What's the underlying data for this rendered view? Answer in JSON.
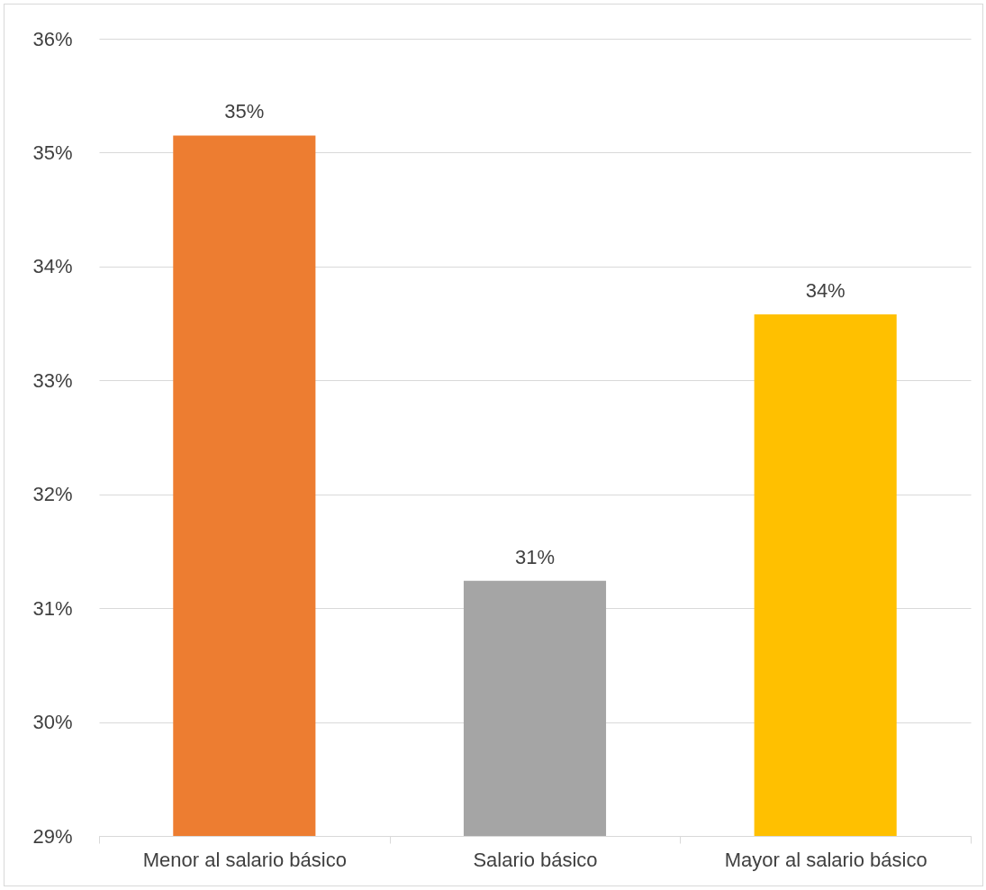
{
  "chart_data": {
    "type": "bar",
    "categories": [
      "Menor al salario básico",
      "Salario básico",
      "Mayor al salario básico"
    ],
    "values": [
      35.15,
      31.24,
      33.58
    ],
    "colors": [
      "#ed7d31",
      "#a5a5a5",
      "#ffc000"
    ],
    "value_labels": [
      "35%",
      "31%",
      "34%"
    ],
    "ylim": [
      29,
      36
    ],
    "yticks": [
      {
        "value": 29,
        "label": "29%"
      },
      {
        "value": 30,
        "label": "30%"
      },
      {
        "value": 31,
        "label": "31%"
      },
      {
        "value": 32,
        "label": "32%"
      },
      {
        "value": 33,
        "label": "33%"
      },
      {
        "value": 34,
        "label": "34%"
      },
      {
        "value": 35,
        "label": "35%"
      },
      {
        "value": 36,
        "label": "36%"
      }
    ],
    "grid": "y"
  }
}
